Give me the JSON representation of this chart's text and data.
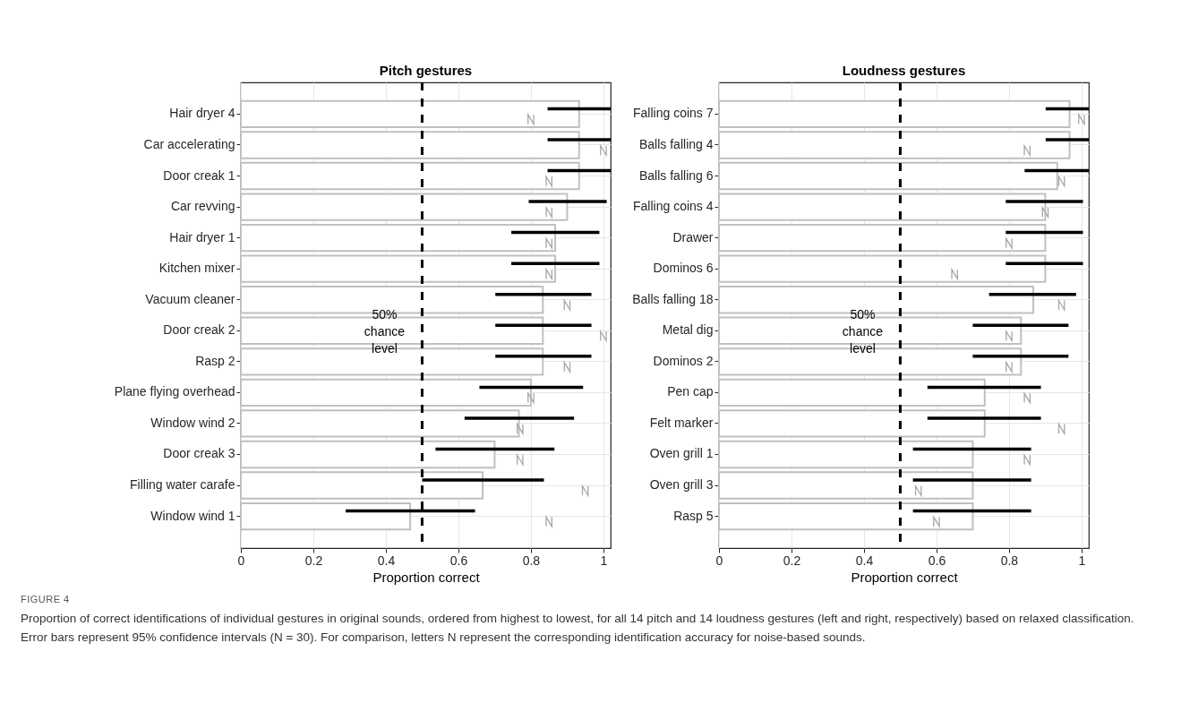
{
  "chart_data": [
    {
      "type": "bar",
      "orientation": "horizontal",
      "title": "Pitch gestures",
      "xlabel": "Proportion correct",
      "categories": [
        "Hair dryer 4",
        "Car accelerating",
        "Door creak 1",
        "Car revving",
        "Hair dryer 1",
        "Kitchen mixer",
        "Vacuum cleaner",
        "Door creak 2",
        "Rasp 2",
        "Plane flying overhead",
        "Window wind 2",
        "Door creak 3",
        "Filling water carafe",
        "Window wind 1"
      ],
      "series": [
        {
          "color": "#c0c0c0",
          "values": [
            0.933,
            0.933,
            0.933,
            0.9,
            0.867,
            0.867,
            0.833,
            0.833,
            0.833,
            0.8,
            0.767,
            0.7,
            0.667,
            0.467
          ],
          "errors": [
            [
              0.846,
              1.02
            ],
            [
              0.846,
              1.02
            ],
            [
              0.846,
              1.02
            ],
            [
              0.794,
              1.009
            ],
            [
              0.746,
              0.989
            ],
            [
              0.746,
              0.989
            ],
            [
              0.702,
              0.967
            ],
            [
              0.702,
              0.967
            ],
            [
              0.702,
              0.967
            ],
            [
              0.658,
              0.944
            ],
            [
              0.617,
              0.919
            ],
            [
              0.537,
              0.865
            ],
            [
              0.5,
              0.836
            ],
            [
              0.289,
              0.646
            ]
          ]
        },
        {
          "type": "scatter",
          "color": "#a6a6a6",
          "values": [
            0.8,
            1.0,
            0.85,
            0.85,
            0.85,
            0.85,
            0.9,
            1.0,
            0.9,
            0.8,
            0.77,
            0.77,
            0.95,
            0.85
          ]
        }
      ],
      "xlim": [
        0,
        1.02
      ],
      "xticks": [
        0,
        0.2,
        0.4,
        0.6,
        0.8,
        1
      ],
      "ref_lines": [
        {
          "axis": "x",
          "value": 0.5,
          "label": "50% chance level",
          "color": "#000000",
          "line_style": "dashed"
        }
      ],
      "grid": true,
      "annotations": [
        "FIGURE 4",
        "Proportion of correct identifications of individual gestures in original sounds, ordered from highest to lowest, for all 14 pitch and 14 loudness gestures (left and right, respectively) based on relaxed classification. Error bars represent 95% confidence intervals (N = 30). For comparison, letters N represent the corresponding identification accuracy for noise-based sounds."
      ]
    },
    {
      "type": "bar",
      "orientation": "horizontal",
      "title": "Loudness gestures",
      "xlabel": "Proportion correct",
      "categories": [
        "Falling coins 7",
        "Balls falling 4",
        "Balls falling 6",
        "Falling coins 4",
        "Drawer",
        "Dominos 6",
        "Balls falling 18",
        "Metal dig",
        "Dominos 2",
        "Pen cap",
        "Felt marker",
        "Oven grill 1",
        "Oven grill 3",
        "Rasp 5"
      ],
      "series": [
        {
          "color": "#c0c0c0",
          "values": [
            0.967,
            0.967,
            0.933,
            0.9,
            0.9,
            0.9,
            0.867,
            0.833,
            0.833,
            0.733,
            0.733,
            0.7,
            0.7,
            0.7
          ],
          "errors": [
            [
              0.901,
              1.02
            ],
            [
              0.901,
              1.02
            ],
            [
              0.843,
              1.02
            ],
            [
              0.791,
              1.004
            ],
            [
              0.791,
              1.004
            ],
            [
              0.791,
              1.004
            ],
            [
              0.745,
              0.985
            ],
            [
              0.7,
              0.964
            ],
            [
              0.7,
              0.964
            ],
            [
              0.575,
              0.888
            ],
            [
              0.575,
              0.888
            ],
            [
              0.535,
              0.861
            ],
            [
              0.535,
              0.861
            ],
            [
              0.535,
              0.861
            ]
          ]
        },
        {
          "type": "scatter",
          "color": "#a6a6a6",
          "values": [
            1.0,
            0.85,
            0.945,
            0.9,
            0.8,
            0.65,
            0.945,
            0.8,
            0.8,
            0.85,
            0.945,
            0.85,
            0.55,
            0.6
          ]
        }
      ],
      "xlim": [
        0,
        1.02
      ],
      "xticks": [
        0,
        0.2,
        0.4,
        0.6,
        0.8,
        1
      ],
      "ref_lines": [
        {
          "axis": "x",
          "value": 0.5,
          "label": "50% chance level",
          "color": "#000000",
          "line_style": "dashed"
        }
      ],
      "grid": true
    }
  ]
}
